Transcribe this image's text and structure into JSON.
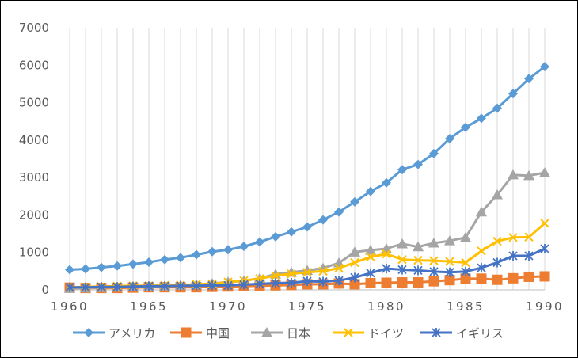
{
  "chart_data": {
    "type": "line",
    "title": "",
    "xlabel": "",
    "ylabel": "",
    "xlim": [
      1960,
      1990
    ],
    "ylim": [
      0,
      7000
    ],
    "x_ticks": [
      "1960",
      "1965",
      "1970",
      "1975",
      "1980",
      "1985",
      "1990"
    ],
    "y_ticks": [
      "0",
      "1000",
      "2000",
      "3000",
      "4000",
      "5000",
      "6000",
      "7000"
    ],
    "grid": "vertical",
    "legend_position": "bottom",
    "x": [
      1960,
      1961,
      1962,
      1963,
      1964,
      1965,
      1966,
      1967,
      1968,
      1969,
      1970,
      1971,
      1972,
      1973,
      1974,
      1975,
      1976,
      1977,
      1978,
      1979,
      1980,
      1981,
      1982,
      1983,
      1984,
      1985,
      1986,
      1987,
      1988,
      1989,
      1990
    ],
    "series": [
      {
        "name": "アメリカ",
        "color": "#5B9BD5",
        "marker": "diamond",
        "values": [
          540,
          560,
          600,
          640,
          690,
          740,
          810,
          860,
          940,
          1020,
          1070,
          1160,
          1280,
          1420,
          1550,
          1680,
          1870,
          2080,
          2350,
          2630,
          2860,
          3210,
          3350,
          3640,
          4040,
          4340,
          4580,
          4850,
          5240,
          5640,
          5960
        ]
      },
      {
        "name": "中国",
        "color": "#ED7D31",
        "marker": "square",
        "values": [
          60,
          50,
          50,
          50,
          60,
          70,
          70,
          70,
          70,
          80,
          90,
          100,
          110,
          120,
          130,
          150,
          150,
          170,
          150,
          180,
          190,
          200,
          200,
          230,
          260,
          300,
          300,
          270,
          310,
          350,
          360
        ]
      },
      {
        "name": "日本",
        "color": "#A5A5A5",
        "marker": "triangle",
        "values": [
          40,
          50,
          60,
          70,
          80,
          90,
          100,
          120,
          140,
          170,
          210,
          240,
          310,
          420,
          470,
          520,
          580,
          720,
          1010,
          1060,
          1100,
          1230,
          1150,
          1250,
          1310,
          1400,
          2080,
          2540,
          3070,
          3050,
          3130
        ]
      },
      {
        "name": "ドイツ",
        "color": "#FFC000",
        "marker": "x",
        "values": [
          70,
          80,
          90,
          100,
          110,
          110,
          120,
          130,
          150,
          160,
          210,
          250,
          300,
          380,
          430,
          470,
          500,
          580,
          730,
          880,
          960,
          810,
          790,
          780,
          760,
          730,
          1040,
          1300,
          1400,
          1410,
          1780
        ]
      },
      {
        "name": "イギリス",
        "color": "#4472C4",
        "marker": "star",
        "values": [
          70,
          70,
          80,
          80,
          90,
          100,
          100,
          110,
          110,
          120,
          120,
          140,
          160,
          180,
          190,
          230,
          220,
          250,
          330,
          450,
          570,
          540,
          520,
          490,
          470,
          490,
          590,
          730,
          910,
          910,
          1100
        ]
      }
    ]
  }
}
